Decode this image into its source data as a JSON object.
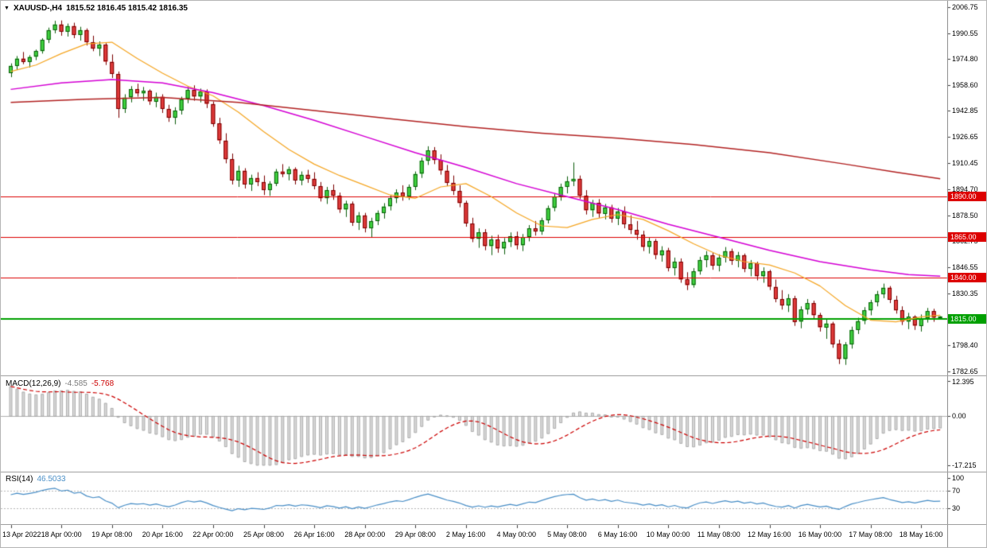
{
  "window": {
    "arrow_icon": "▼"
  },
  "header": {
    "symbol": "XAUUSD-,H4",
    "ohlc_text": "1815.52 1816.45 1815.42 1816.35"
  },
  "indicators": {
    "macd": {
      "label": "MACD(12,26,9)",
      "main_value": "-4.585",
      "signal_value": "-5.768"
    },
    "rsi": {
      "label": "RSI(14)",
      "value": "46.5033"
    }
  },
  "chart_data": {
    "type": "candlestick",
    "symbol": "XAUUSD-",
    "timeframe": "H4",
    "current": {
      "open": 1815.52,
      "high": 1816.45,
      "low": 1815.42,
      "close": 1816.35
    },
    "price_axis": {
      "min": 1780.5,
      "max": 2010.5,
      "ticks": [
        "2006.75",
        "1990.55",
        "1974.80",
        "1958.60",
        "1942.85",
        "1926.65",
        "1910.45",
        "1894.70",
        "1878.50",
        "1862.75",
        "1846.55",
        "1830.35",
        "1814.60",
        "1798.40",
        "1782.65"
      ]
    },
    "time_axis": {
      "label_every": 8,
      "labels": [
        "13 Apr 2022",
        "18 Apr 00:00",
        "19 Apr 08:00",
        "20 Apr 16:00",
        "22 Apr 00:00",
        "25 Apr 08:00",
        "26 Apr 16:00",
        "28 Apr 00:00",
        "29 Apr 08:00",
        "2 May 16:00",
        "4 May 00:00",
        "5 May 08:00",
        "6 May 16:00",
        "10 May 00:00",
        "11 May 08:00",
        "12 May 16:00",
        "16 May 00:00",
        "17 May 08:00",
        "18 May 16:00"
      ]
    },
    "levels": [
      {
        "price": 1890.0,
        "label": "1890.00",
        "color": "#dd0000",
        "line_width": 1
      },
      {
        "price": 1865.0,
        "label": "1865.00",
        "color": "#dd0000",
        "line_width": 1
      },
      {
        "price": 1840.0,
        "label": "1840.00",
        "color": "#dd0000",
        "line_width": 1
      },
      {
        "price": 1815.0,
        "label": "1815.00",
        "color": "#00a000",
        "line_width": 2
      }
    ],
    "colors": {
      "bg": "#ffffff",
      "up_fill": "#3fd23f",
      "up_border": "#0b5d0b",
      "down_fill": "#e23b3b",
      "down_border": "#7a0000",
      "axis_text": "#000000"
    },
    "moving_averages": [
      {
        "name": "ma-fast-orange",
        "color": "#f5a623",
        "width": 1.2,
        "points": [
          [
            0,
            1967
          ],
          [
            4,
            1971
          ],
          [
            8,
            1978
          ],
          [
            12,
            1984
          ],
          [
            16,
            1985
          ],
          [
            20,
            1975
          ],
          [
            24,
            1966
          ],
          [
            28,
            1958
          ],
          [
            32,
            1952
          ],
          [
            36,
            1942
          ],
          [
            40,
            1930
          ],
          [
            44,
            1919
          ],
          [
            48,
            1910
          ],
          [
            52,
            1903
          ],
          [
            56,
            1897
          ],
          [
            60,
            1891
          ],
          [
            64,
            1889
          ],
          [
            68,
            1896
          ],
          [
            72,
            1898
          ],
          [
            76,
            1890
          ],
          [
            80,
            1880
          ],
          [
            84,
            1872
          ],
          [
            88,
            1871
          ],
          [
            92,
            1876
          ],
          [
            96,
            1879
          ],
          [
            100,
            1876
          ],
          [
            104,
            1869
          ],
          [
            108,
            1861
          ],
          [
            112,
            1854
          ],
          [
            116,
            1850
          ],
          [
            120,
            1848
          ],
          [
            124,
            1843
          ],
          [
            128,
            1835
          ],
          [
            132,
            1823
          ],
          [
            136,
            1814
          ],
          [
            140,
            1813
          ],
          [
            144,
            1816
          ],
          [
            147,
            1817
          ]
        ]
      },
      {
        "name": "ma-mid-magenta",
        "color": "#d400d4",
        "width": 1.5,
        "points": [
          [
            0,
            1956
          ],
          [
            8,
            1960
          ],
          [
            16,
            1962
          ],
          [
            24,
            1960
          ],
          [
            32,
            1954
          ],
          [
            40,
            1946
          ],
          [
            48,
            1937
          ],
          [
            56,
            1927
          ],
          [
            64,
            1917
          ],
          [
            72,
            1908
          ],
          [
            80,
            1898
          ],
          [
            88,
            1890
          ],
          [
            96,
            1882
          ],
          [
            104,
            1873
          ],
          [
            112,
            1865
          ],
          [
            120,
            1857
          ],
          [
            128,
            1850
          ],
          [
            136,
            1845
          ],
          [
            142,
            1842
          ],
          [
            147,
            1841
          ]
        ]
      },
      {
        "name": "ma-slow-darkred",
        "color": "#b22222",
        "width": 1.5,
        "points": [
          [
            0,
            1948
          ],
          [
            12,
            1950
          ],
          [
            24,
            1951
          ],
          [
            36,
            1948
          ],
          [
            48,
            1943
          ],
          [
            60,
            1938
          ],
          [
            72,
            1933
          ],
          [
            84,
            1929
          ],
          [
            96,
            1926
          ],
          [
            108,
            1922
          ],
          [
            120,
            1917
          ],
          [
            132,
            1910
          ],
          [
            140,
            1905
          ],
          [
            147,
            1901
          ]
        ]
      }
    ],
    "candles": [
      [
        1966.0,
        1972.0,
        1963.5,
        1970.5
      ],
      [
        1970.5,
        1976.5,
        1968.0,
        1975.0
      ],
      [
        1975.0,
        1979.0,
        1971.5,
        1973.0
      ],
      [
        1973.0,
        1977.0,
        1969.5,
        1976.0
      ],
      [
        1976.0,
        1980.5,
        1974.0,
        1979.5
      ],
      [
        1979.5,
        1987.5,
        1978.0,
        1986.5
      ],
      [
        1986.5,
        1994.0,
        1984.5,
        1992.5
      ],
      [
        1992.5,
        1998.2,
        1990.5,
        1996.0
      ],
      [
        1996.0,
        1998.4,
        1989.0,
        1991.5
      ],
      [
        1991.5,
        1996.5,
        1988.5,
        1995.0
      ],
      [
        1995.0,
        1997.0,
        1987.5,
        1989.5
      ],
      [
        1989.5,
        1994.5,
        1986.0,
        1992.5
      ],
      [
        1992.5,
        1993.5,
        1983.0,
        1985.0
      ],
      [
        1985.0,
        1989.0,
        1979.5,
        1981.0
      ],
      [
        1981.0,
        1985.5,
        1976.5,
        1983.5
      ],
      [
        1983.5,
        1984.5,
        1971.0,
        1973.0
      ],
      [
        1973.0,
        1977.5,
        1963.0,
        1965.5
      ],
      [
        1965.5,
        1967.0,
        1938.5,
        1944.0
      ],
      [
        1944.0,
        1953.0,
        1941.5,
        1951.0
      ],
      [
        1951.0,
        1958.0,
        1948.0,
        1956.0
      ],
      [
        1956.0,
        1959.5,
        1951.5,
        1953.5
      ],
      [
        1953.5,
        1957.5,
        1949.0,
        1955.0
      ],
      [
        1955.0,
        1956.0,
        1946.5,
        1948.5
      ],
      [
        1948.5,
        1954.0,
        1945.0,
        1951.5
      ],
      [
        1951.5,
        1953.0,
        1941.5,
        1944.0
      ],
      [
        1944.0,
        1946.5,
        1936.0,
        1938.5
      ],
      [
        1938.5,
        1945.0,
        1934.5,
        1943.0
      ],
      [
        1943.0,
        1951.5,
        1940.5,
        1950.0
      ],
      [
        1950.0,
        1957.5,
        1947.5,
        1955.5
      ],
      [
        1955.5,
        1958.5,
        1949.0,
        1951.5
      ],
      [
        1951.5,
        1956.5,
        1948.0,
        1954.5
      ],
      [
        1954.5,
        1956.0,
        1944.5,
        1947.0
      ],
      [
        1947.0,
        1948.5,
        1933.0,
        1935.0
      ],
      [
        1935.0,
        1938.5,
        1922.5,
        1924.5
      ],
      [
        1924.5,
        1929.0,
        1910.5,
        1913.0
      ],
      [
        1913.0,
        1916.5,
        1897.5,
        1900.0
      ],
      [
        1900.0,
        1909.0,
        1896.0,
        1906.0
      ],
      [
        1906.0,
        1907.5,
        1895.0,
        1897.5
      ],
      [
        1897.5,
        1903.5,
        1893.5,
        1901.5
      ],
      [
        1901.5,
        1905.0,
        1896.5,
        1899.0
      ],
      [
        1899.0,
        1903.0,
        1891.0,
        1894.0
      ],
      [
        1894.0,
        1899.5,
        1890.5,
        1898.0
      ],
      [
        1898.0,
        1907.0,
        1896.5,
        1905.5
      ],
      [
        1905.5,
        1910.0,
        1902.0,
        1904.0
      ],
      [
        1904.0,
        1908.5,
        1900.0,
        1907.0
      ],
      [
        1907.0,
        1908.0,
        1897.5,
        1900.0
      ],
      [
        1900.0,
        1905.5,
        1897.0,
        1903.5
      ],
      [
        1903.5,
        1906.5,
        1898.5,
        1901.0
      ],
      [
        1901.0,
        1905.0,
        1894.5,
        1896.5
      ],
      [
        1896.5,
        1899.0,
        1887.0,
        1889.0
      ],
      [
        1889.0,
        1896.0,
        1885.5,
        1894.0
      ],
      [
        1894.0,
        1897.5,
        1888.0,
        1890.5
      ],
      [
        1890.5,
        1892.5,
        1880.0,
        1882.0
      ],
      [
        1882.0,
        1887.5,
        1877.5,
        1885.5
      ],
      [
        1885.5,
        1887.0,
        1872.0,
        1874.0
      ],
      [
        1874.0,
        1880.5,
        1869.5,
        1878.5
      ],
      [
        1878.5,
        1880.0,
        1868.0,
        1870.5
      ],
      [
        1870.5,
        1877.0,
        1865.0,
        1875.0
      ],
      [
        1875.0,
        1881.5,
        1872.5,
        1880.0
      ],
      [
        1880.0,
        1886.0,
        1876.5,
        1884.0
      ],
      [
        1884.0,
        1891.0,
        1881.5,
        1889.0
      ],
      [
        1889.0,
        1894.5,
        1886.0,
        1892.5
      ],
      [
        1892.5,
        1897.0,
        1887.5,
        1890.0
      ],
      [
        1890.0,
        1897.5,
        1888.0,
        1896.0
      ],
      [
        1896.0,
        1905.5,
        1894.0,
        1904.0
      ],
      [
        1904.0,
        1914.0,
        1901.5,
        1912.0
      ],
      [
        1912.0,
        1921.0,
        1909.5,
        1918.5
      ],
      [
        1918.5,
        1920.5,
        1910.0,
        1912.5
      ],
      [
        1912.5,
        1916.0,
        1903.5,
        1906.0
      ],
      [
        1906.0,
        1909.5,
        1896.5,
        1898.5
      ],
      [
        1898.5,
        1903.0,
        1891.0,
        1893.5
      ],
      [
        1893.5,
        1897.0,
        1883.5,
        1886.0
      ],
      [
        1886.0,
        1887.5,
        1871.5,
        1873.5
      ],
      [
        1873.5,
        1877.0,
        1862.0,
        1864.0
      ],
      [
        1864.0,
        1870.5,
        1858.5,
        1868.0
      ],
      [
        1868.0,
        1870.0,
        1857.0,
        1859.5
      ],
      [
        1859.5,
        1866.0,
        1854.0,
        1863.5
      ],
      [
        1863.5,
        1866.5,
        1855.5,
        1858.0
      ],
      [
        1858.0,
        1864.5,
        1854.5,
        1862.0
      ],
      [
        1862.0,
        1868.0,
        1859.0,
        1865.5
      ],
      [
        1865.5,
        1868.5,
        1857.5,
        1860.0
      ],
      [
        1860.0,
        1867.0,
        1856.5,
        1865.0
      ],
      [
        1865.0,
        1872.5,
        1862.5,
        1870.5
      ],
      [
        1870.5,
        1875.0,
        1866.0,
        1868.5
      ],
      [
        1868.5,
        1877.0,
        1866.5,
        1875.5
      ],
      [
        1875.5,
        1884.5,
        1873.5,
        1883.0
      ],
      [
        1883.0,
        1892.0,
        1881.0,
        1890.0
      ],
      [
        1890.0,
        1898.0,
        1887.5,
        1896.0
      ],
      [
        1896.0,
        1902.5,
        1892.0,
        1899.5
      ],
      [
        1899.5,
        1911.0,
        1896.5,
        1901.0
      ],
      [
        1901.0,
        1903.0,
        1888.5,
        1890.5
      ],
      [
        1890.5,
        1894.0,
        1879.0,
        1881.5
      ],
      [
        1881.5,
        1888.0,
        1877.5,
        1886.0
      ],
      [
        1886.0,
        1888.5,
        1877.0,
        1879.5
      ],
      [
        1879.5,
        1885.5,
        1876.0,
        1883.5
      ],
      [
        1883.5,
        1885.0,
        1874.0,
        1876.5
      ],
      [
        1876.5,
        1883.0,
        1872.5,
        1881.0
      ],
      [
        1881.0,
        1884.0,
        1870.5,
        1873.0
      ],
      [
        1873.0,
        1878.5,
        1867.0,
        1869.5
      ],
      [
        1869.5,
        1875.0,
        1863.5,
        1866.5
      ],
      [
        1866.5,
        1869.0,
        1856.5,
        1859.0
      ],
      [
        1859.0,
        1865.0,
        1855.0,
        1862.5
      ],
      [
        1862.5,
        1864.0,
        1851.5,
        1854.0
      ],
      [
        1854.0,
        1859.5,
        1850.0,
        1857.0
      ],
      [
        1857.0,
        1858.5,
        1844.0,
        1846.0
      ],
      [
        1846.0,
        1852.5,
        1841.5,
        1850.0
      ],
      [
        1850.0,
        1852.0,
        1837.0,
        1839.0
      ],
      [
        1839.0,
        1843.5,
        1832.5,
        1835.5
      ],
      [
        1835.5,
        1846.0,
        1834.0,
        1844.0
      ],
      [
        1844.0,
        1853.0,
        1842.0,
        1851.0
      ],
      [
        1851.0,
        1856.5,
        1846.5,
        1854.0
      ],
      [
        1854.0,
        1855.5,
        1845.0,
        1847.5
      ],
      [
        1847.5,
        1854.5,
        1844.0,
        1852.5
      ],
      [
        1852.5,
        1859.0,
        1849.5,
        1856.5
      ],
      [
        1856.5,
        1858.0,
        1848.0,
        1850.5
      ],
      [
        1850.5,
        1856.0,
        1846.5,
        1854.0
      ],
      [
        1854.0,
        1855.0,
        1843.5,
        1845.5
      ],
      [
        1845.5,
        1851.0,
        1841.0,
        1849.0
      ],
      [
        1849.0,
        1850.0,
        1838.5,
        1841.0
      ],
      [
        1841.0,
        1846.5,
        1837.0,
        1844.0
      ],
      [
        1844.0,
        1845.0,
        1832.5,
        1834.5
      ],
      [
        1834.5,
        1839.0,
        1825.0,
        1827.0
      ],
      [
        1827.0,
        1832.5,
        1820.5,
        1823.0
      ],
      [
        1823.0,
        1830.0,
        1819.0,
        1827.5
      ],
      [
        1827.5,
        1829.0,
        1810.5,
        1813.0
      ],
      [
        1813.0,
        1822.5,
        1809.0,
        1820.5
      ],
      [
        1820.5,
        1827.0,
        1817.5,
        1824.5
      ],
      [
        1824.5,
        1826.0,
        1815.0,
        1817.0
      ],
      [
        1817.0,
        1818.5,
        1807.0,
        1809.5
      ],
      [
        1809.5,
        1815.0,
        1802.5,
        1812.0
      ],
      [
        1812.0,
        1813.0,
        1797.0,
        1799.5
      ],
      [
        1799.5,
        1802.0,
        1787.0,
        1790.0
      ],
      [
        1790.0,
        1800.5,
        1786.5,
        1799.0
      ],
      [
        1799.0,
        1810.0,
        1796.5,
        1808.0
      ],
      [
        1808.0,
        1815.5,
        1805.5,
        1813.5
      ],
      [
        1813.5,
        1822.0,
        1811.5,
        1820.0
      ],
      [
        1820.0,
        1826.5,
        1817.0,
        1825.0
      ],
      [
        1825.0,
        1832.0,
        1822.5,
        1830.0
      ],
      [
        1830.0,
        1836.5,
        1827.5,
        1834.0
      ],
      [
        1834.0,
        1835.0,
        1824.5,
        1826.5
      ],
      [
        1826.5,
        1829.0,
        1818.0,
        1820.0
      ],
      [
        1820.0,
        1822.5,
        1811.0,
        1813.0
      ],
      [
        1813.0,
        1818.5,
        1808.5,
        1816.0
      ],
      [
        1816.0,
        1817.0,
        1808.0,
        1810.5
      ],
      [
        1810.5,
        1817.5,
        1807.0,
        1815.0
      ],
      [
        1815.0,
        1821.5,
        1812.5,
        1819.5
      ],
      [
        1819.5,
        1821.0,
        1813.0,
        1815.5
      ],
      [
        1815.52,
        1816.45,
        1815.42,
        1816.35
      ]
    ],
    "macd": {
      "fast": 12,
      "slow": 26,
      "signal": 9,
      "derived_from": "candles",
      "scale_max": 12.395,
      "scale_min": -17.215,
      "axis": [
        "12.395",
        "0.00",
        "-17.215"
      ],
      "hist_fill": "#d9d9d9",
      "hist_border": "#999999",
      "signal_color": "#cc0000"
    },
    "rsi": {
      "period": 14,
      "derived_from": "candles",
      "levels": [
        70,
        30
      ],
      "axis_labels": [
        "100",
        "70",
        "30"
      ],
      "line_color": "#4a8fc7"
    }
  }
}
